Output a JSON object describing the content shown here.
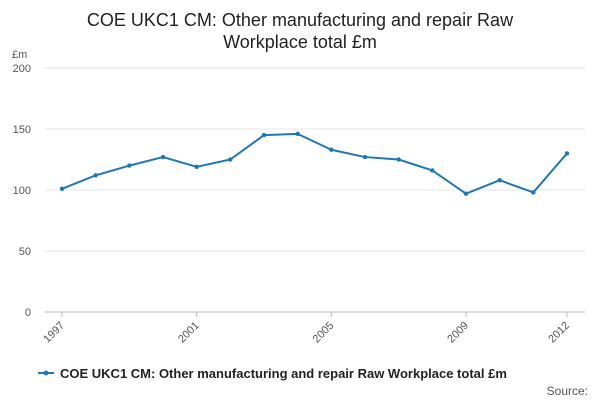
{
  "chart_data": {
    "type": "line",
    "title_lines": [
      "COE UKC1 CM: Other manufacturing and repair Raw",
      "Workplace total £m"
    ],
    "unit_label": "£m",
    "y_ticks": [
      0,
      50,
      100,
      150,
      200
    ],
    "ylim": [
      0,
      200
    ],
    "x_ticks": [
      "1997",
      "2001",
      "2005",
      "2009",
      "2012"
    ],
    "xlim": [
      1997,
      2012
    ],
    "grid": true,
    "legend_position": "bottom",
    "series": [
      {
        "name": "COE UKC1 CM: Other manufacturing and repair Raw Workplace total £m",
        "color": "#1f78b4",
        "x": [
          1997,
          1998,
          1999,
          2000,
          2001,
          2002,
          2003,
          2004,
          2005,
          2006,
          2007,
          2008,
          2009,
          2010,
          2011,
          2012
        ],
        "values": [
          101,
          112,
          120,
          127,
          119,
          125,
          145,
          146,
          133,
          127,
          125,
          116,
          97,
          108,
          98,
          130
        ]
      }
    ],
    "source_label": "Source:"
  }
}
